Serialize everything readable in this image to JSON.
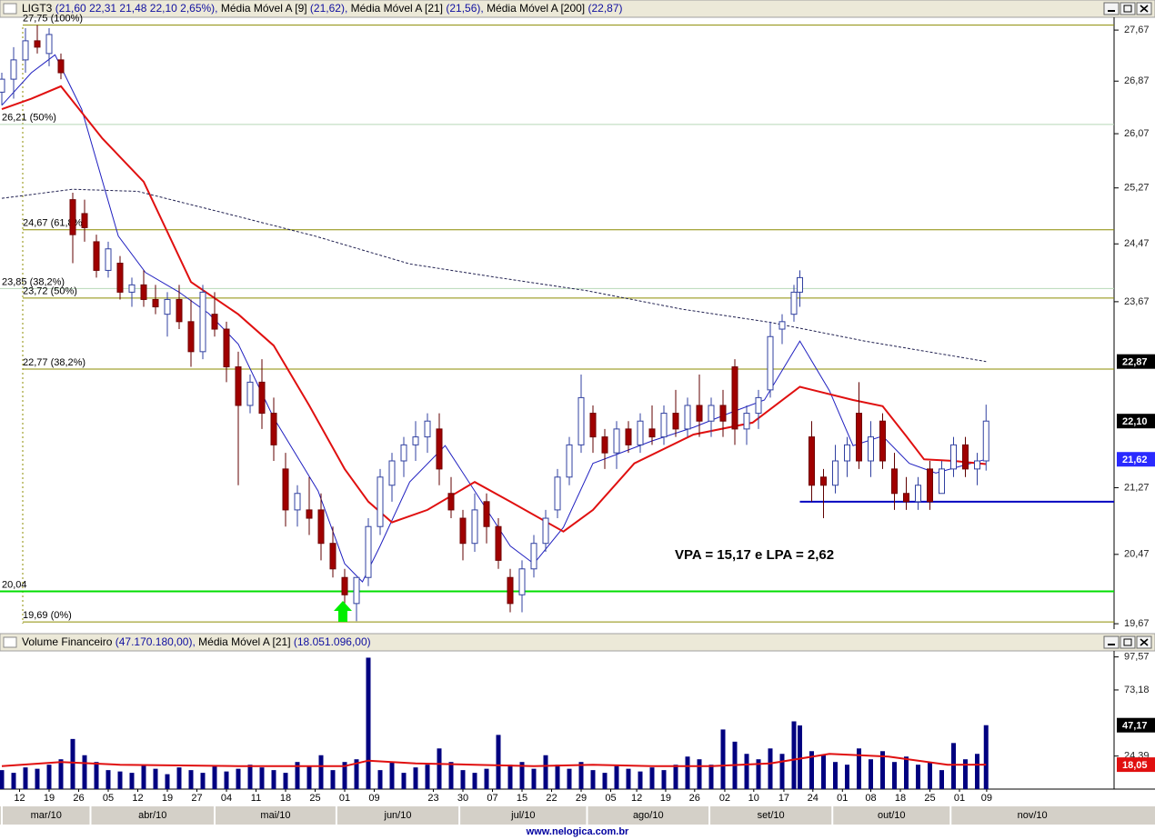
{
  "chart_data": [
    {
      "type": "candlestick",
      "title": "LIGT3",
      "quote": "(21,60  22,31  21,48  22,10  2,65%),",
      "log": true,
      "xlim": [
        0,
        188
      ],
      "ylim": [
        19.63,
        27.86
      ],
      "yticks": [
        {
          "value": 27.67,
          "label": "27,67"
        },
        {
          "value": 26.87,
          "label": "26,87"
        },
        {
          "value": 26.07,
          "label": "26,07"
        },
        {
          "value": 25.27,
          "label": "25,27"
        },
        {
          "value": 24.47,
          "label": "24,47"
        },
        {
          "value": 23.67,
          "label": "23,67"
        },
        {
          "value": 21.27,
          "label": "21,27"
        },
        {
          "value": 20.47,
          "label": "20,47"
        },
        {
          "value": 19.67,
          "label": "19,67"
        }
      ],
      "markers": [
        {
          "value": 22.87,
          "label": "22,87",
          "color": "#000000"
        },
        {
          "value": 22.1,
          "label": "22,10",
          "color": "#000000"
        },
        {
          "value": 21.62,
          "label": "21,62",
          "color": "#2a2aff"
        }
      ],
      "levels": [
        {
          "value": 27.75,
          "label": "27,75 (100%)",
          "color": "#8c8c00"
        },
        {
          "value": 26.21,
          "label": "26,21 (50%)",
          "color": "#b8d8b8"
        },
        {
          "value": 24.67,
          "label": "24,67 (61,8%)",
          "color": "#8c8c00"
        },
        {
          "value": 23.85,
          "label": "23,85 (38,2%)",
          "color": "#b8d8b8"
        },
        {
          "value": 23.72,
          "label": "23,72 (50%)",
          "color": "#8c8c00"
        },
        {
          "value": 22.77,
          "label": "22,77 (38,2%)",
          "color": "#8c8c00"
        },
        {
          "value": 20.04,
          "label": "20,04",
          "color": "#00dd00"
        },
        {
          "value": 19.69,
          "label": "19,69 (0%)",
          "color": "#8c8c00"
        }
      ],
      "support": {
        "value": 21.1,
        "from": 135,
        "color": "#0000c0"
      },
      "annotation": "VPA = 15,17 e LPA = 2,62",
      "up_color": "#ffffff",
      "down_color": "#a00000",
      "x": [
        0,
        2,
        4,
        6,
        8,
        10,
        12,
        14,
        16,
        18,
        20,
        22,
        24,
        26,
        28,
        30,
        32,
        34,
        36,
        38,
        40,
        42,
        44,
        46,
        48,
        50,
        52,
        54,
        56,
        58,
        60,
        62,
        64,
        66,
        68,
        70,
        72,
        74,
        76,
        78,
        80,
        82,
        84,
        86,
        88,
        90,
        92,
        94,
        96,
        98,
        100,
        102,
        104,
        106,
        108,
        110,
        112,
        114,
        116,
        118,
        120,
        122,
        124,
        126,
        128,
        130,
        132,
        134,
        135,
        137,
        139,
        141,
        143,
        145,
        147,
        149,
        151,
        153,
        155,
        157,
        159,
        161,
        163,
        165,
        166.5
      ],
      "open": [
        26.7,
        26.9,
        27.2,
        27.5,
        27.3,
        27.2,
        25.1,
        24.9,
        24.5,
        24.1,
        24.2,
        23.8,
        23.9,
        23.7,
        23.5,
        23.7,
        23.4,
        23.0,
        23.5,
        23.3,
        22.8,
        22.3,
        22.6,
        22.2,
        21.5,
        21.0,
        21.0,
        21.0,
        20.6,
        20.2,
        19.9,
        20.2,
        20.8,
        21.3,
        21.6,
        21.8,
        21.9,
        22.0,
        21.2,
        20.9,
        20.6,
        21.1,
        20.8,
        20.2,
        20.0,
        20.3,
        20.6,
        21.0,
        21.4,
        21.8,
        22.2,
        21.9,
        21.7,
        22.0,
        21.8,
        22.0,
        21.9,
        22.2,
        22.0,
        22.3,
        22.1,
        22.3,
        22.8,
        22.0,
        22.2,
        22.5,
        23.3,
        23.5,
        23.8,
        21.9,
        21.4,
        21.3,
        21.6,
        22.2,
        21.6,
        22.1,
        21.5,
        21.2,
        21.1,
        21.5,
        21.2,
        21.5,
        21.8,
        21.5,
        21.6
      ],
      "high": [
        27.0,
        27.4,
        27.7,
        27.75,
        27.7,
        27.3,
        25.2,
        25.1,
        24.6,
        24.5,
        24.3,
        24.0,
        24.1,
        23.9,
        23.8,
        23.9,
        23.7,
        23.9,
        23.8,
        23.4,
        23.0,
        22.7,
        22.9,
        22.4,
        21.7,
        21.3,
        21.4,
        21.2,
        20.8,
        20.3,
        20.2,
        20.9,
        21.5,
        21.7,
        21.9,
        22.1,
        22.2,
        22.2,
        21.4,
        21.0,
        21.2,
        21.2,
        20.9,
        20.3,
        20.4,
        20.7,
        21.0,
        21.5,
        21.9,
        22.7,
        22.3,
        22.0,
        22.1,
        22.1,
        22.2,
        22.3,
        22.3,
        22.5,
        22.4,
        22.7,
        22.4,
        22.5,
        22.9,
        22.3,
        22.5,
        23.4,
        23.5,
        23.9,
        24.1,
        22.1,
        21.5,
        21.8,
        21.9,
        22.6,
        22.1,
        22.2,
        21.7,
        21.4,
        21.4,
        21.6,
        21.6,
        21.9,
        21.9,
        21.7,
        22.31
      ],
      "low": [
        26.5,
        26.6,
        27.0,
        27.3,
        27.1,
        26.9,
        24.2,
        24.5,
        24.0,
        24.0,
        23.7,
        23.6,
        23.6,
        23.5,
        23.2,
        23.3,
        22.8,
        22.9,
        23.2,
        22.6,
        21.3,
        22.2,
        22.0,
        21.6,
        20.8,
        20.8,
        20.7,
        20.4,
        20.2,
        19.8,
        19.7,
        20.1,
        20.7,
        21.1,
        21.4,
        21.6,
        21.7,
        21.3,
        20.9,
        20.4,
        20.5,
        20.6,
        20.3,
        19.8,
        19.8,
        20.2,
        20.5,
        20.9,
        21.3,
        21.7,
        21.7,
        21.5,
        21.5,
        21.7,
        21.7,
        21.8,
        21.8,
        21.9,
        21.9,
        21.9,
        21.9,
        21.9,
        21.8,
        21.8,
        22.0,
        22.4,
        23.1,
        23.4,
        23.6,
        21.1,
        20.9,
        21.2,
        21.4,
        21.5,
        21.4,
        21.5,
        21.0,
        21.0,
        21.0,
        21.0,
        21.2,
        21.4,
        21.4,
        21.3,
        21.48
      ],
      "close": [
        26.9,
        27.2,
        27.5,
        27.4,
        27.6,
        27.0,
        24.6,
        24.7,
        24.1,
        24.4,
        23.8,
        23.9,
        23.7,
        23.6,
        23.7,
        23.4,
        23.0,
        23.8,
        23.3,
        22.8,
        22.3,
        22.6,
        22.2,
        21.8,
        21.0,
        21.2,
        20.9,
        20.6,
        20.3,
        20.0,
        20.2,
        20.8,
        21.4,
        21.6,
        21.8,
        21.9,
        22.1,
        21.5,
        21.0,
        20.6,
        21.0,
        20.8,
        20.4,
        19.9,
        20.3,
        20.6,
        20.9,
        21.4,
        21.8,
        22.4,
        21.9,
        21.7,
        22.0,
        21.8,
        22.1,
        21.9,
        22.2,
        22.0,
        22.3,
        22.1,
        22.3,
        22.1,
        22.0,
        22.2,
        22.4,
        23.2,
        23.4,
        23.8,
        24.0,
        21.3,
        21.3,
        21.6,
        21.8,
        21.6,
        21.9,
        21.6,
        21.2,
        21.1,
        21.3,
        21.1,
        21.5,
        21.8,
        21.5,
        21.6,
        22.1
      ],
      "series": [
        {
          "name": "Média Móvel A [9]",
          "label": "(21,62),",
          "color": "#2020c0",
          "line_width": 1,
          "dashed": false,
          "x": [
            0,
            5,
            9,
            13.5,
            19.7,
            24.3,
            30,
            35,
            40,
            46,
            53.5,
            58,
            61,
            64,
            69,
            75,
            80,
            86,
            90,
            95,
            100,
            104,
            110,
            117,
            123,
            129,
            135,
            140,
            144,
            149,
            153.5,
            158,
            163,
            166.5
          ],
          "values": [
            26.5,
            27.0,
            27.28,
            26.44,
            24.58,
            24.07,
            23.8,
            23.51,
            23.1,
            22.14,
            21.23,
            20.36,
            20.15,
            20.57,
            21.34,
            21.79,
            21.23,
            20.57,
            20.36,
            20.79,
            21.57,
            21.68,
            21.85,
            22.02,
            22.2,
            22.37,
            23.14,
            22.49,
            21.79,
            21.91,
            21.57,
            21.45,
            21.55,
            21.62
          ]
        },
        {
          "name": "Média Móvel A [21]",
          "label": "(21,56),",
          "color": "#e01010",
          "line_width": 2,
          "dashed": false,
          "x": [
            0,
            5,
            10,
            17,
            24,
            32,
            40,
            46,
            52,
            58,
            62,
            66,
            72,
            80,
            86,
            95,
            100,
            107,
            117,
            127,
            135,
            144,
            149,
            153,
            156,
            161,
            166.5
          ],
          "values": [
            26.44,
            26.6,
            26.79,
            26.0,
            25.36,
            23.94,
            23.5,
            23.08,
            22.3,
            21.5,
            21.1,
            20.85,
            21.0,
            21.34,
            21.1,
            20.74,
            21.0,
            21.57,
            21.93,
            22.08,
            22.54,
            22.37,
            22.29,
            21.91,
            21.62,
            21.6,
            21.56
          ]
        },
        {
          "name": "Média Móvel A [200]",
          "label": "(22,87)",
          "color": "#202050",
          "line_width": 1,
          "dashed": true,
          "x": [
            0,
            12,
            23,
            38,
            53,
            69,
            84,
            99,
            115,
            130,
            146,
            166.5
          ],
          "values": [
            25.12,
            25.25,
            25.22,
            24.9,
            24.58,
            24.19,
            24.0,
            23.82,
            23.57,
            23.39,
            23.14,
            22.87
          ]
        }
      ],
      "xticks": [
        {
          "value": 3,
          "label": "12"
        },
        {
          "value": 8,
          "label": "19"
        },
        {
          "value": 13,
          "label": "26"
        },
        {
          "value": 18,
          "label": "05"
        },
        {
          "value": 23,
          "label": "12"
        },
        {
          "value": 28,
          "label": "19"
        },
        {
          "value": 33,
          "label": "27"
        },
        {
          "value": 38,
          "label": "04"
        },
        {
          "value": 43,
          "label": "11"
        },
        {
          "value": 48,
          "label": "18"
        },
        {
          "value": 53,
          "label": "25"
        },
        {
          "value": 58,
          "label": "01"
        },
        {
          "value": 63,
          "label": "09"
        },
        {
          "value": 73,
          "label": "23"
        },
        {
          "value": 78,
          "label": "30"
        },
        {
          "value": 83,
          "label": "07"
        },
        {
          "value": 88,
          "label": "15"
        },
        {
          "value": 93,
          "label": "22"
        },
        {
          "value": 98,
          "label": "29"
        },
        {
          "value": 103,
          "label": "05"
        },
        {
          "value": 107.4,
          "label": "12"
        },
        {
          "value": 112.3,
          "label": "19"
        },
        {
          "value": 117.2,
          "label": "26"
        },
        {
          "value": 122.3,
          "label": "02"
        },
        {
          "value": 127.2,
          "label": "10"
        },
        {
          "value": 132.3,
          "label": "17"
        },
        {
          "value": 137.2,
          "label": "24"
        },
        {
          "value": 142.2,
          "label": "01"
        },
        {
          "value": 147,
          "label": "08"
        },
        {
          "value": 152,
          "label": "18"
        },
        {
          "value": 157,
          "label": "25"
        },
        {
          "value": 162,
          "label": "01"
        },
        {
          "value": 166.6,
          "label": "09"
        }
      ],
      "months": [
        {
          "value": 0,
          "label": "mar/10"
        },
        {
          "value": 15,
          "label": "abr/10"
        },
        {
          "value": 36,
          "label": "mai/10"
        },
        {
          "value": 56.6,
          "label": "jun/10"
        },
        {
          "value": 77.4,
          "label": "jul/10"
        },
        {
          "value": 99,
          "label": "ago/10"
        },
        {
          "value": 119.7,
          "label": "set/10"
        },
        {
          "value": 140.5,
          "label": "out/10"
        },
        {
          "value": 160.5,
          "label": "nov/10"
        }
      ],
      "footer": "www.nelogica.com.br"
    },
    {
      "type": "bar",
      "title": "Volume Financeiro",
      "quote": "(47.170.180,00),",
      "color": "#000080",
      "xlim": [
        0,
        188
      ],
      "ylim": [
        0,
        102
      ],
      "yticks": [
        {
          "value": 97.57,
          "label": "97,57"
        },
        {
          "value": 73.18,
          "label": "73,18"
        },
        {
          "value": 24.39,
          "label": "24,39"
        }
      ],
      "markers": [
        {
          "value": 47.17,
          "label": "47,17",
          "color": "#000000"
        },
        {
          "value": 18.05,
          "label": "18,05",
          "color": "#e01010"
        }
      ],
      "x": [
        0,
        2,
        4,
        6,
        8,
        10,
        12,
        14,
        16,
        18,
        20,
        22,
        24,
        26,
        28,
        30,
        32,
        34,
        36,
        38,
        40,
        42,
        44,
        46,
        48,
        50,
        52,
        54,
        56,
        58,
        60,
        62,
        64,
        66,
        68,
        70,
        72,
        74,
        76,
        78,
        80,
        82,
        84,
        86,
        88,
        90,
        92,
        94,
        96,
        98,
        100,
        102,
        104,
        106,
        108,
        110,
        112,
        114,
        116,
        118,
        120,
        122,
        124,
        126,
        128,
        130,
        132,
        134,
        135,
        137,
        139,
        141,
        143,
        145,
        147,
        149,
        151,
        153,
        155,
        157,
        159,
        161,
        163,
        165,
        166.5
      ],
      "values": [
        14,
        12,
        16,
        15,
        18,
        22,
        37,
        25,
        20,
        14,
        13,
        12,
        18,
        15,
        11,
        16,
        14,
        12,
        17,
        13,
        15,
        18,
        16,
        14,
        12,
        20,
        17,
        25,
        14,
        20,
        22,
        97,
        14,
        20,
        12,
        16,
        18,
        30,
        20,
        14,
        12,
        15,
        40,
        18,
        20,
        15,
        25,
        18,
        15,
        20,
        14,
        12,
        17,
        15,
        13,
        16,
        14,
        18,
        24,
        22,
        18,
        44,
        35,
        26,
        22,
        30,
        26,
        50,
        47,
        28,
        25,
        20,
        18,
        30,
        22,
        28,
        20,
        24,
        18,
        20,
        14,
        34,
        22,
        26,
        47.17
      ],
      "series": [
        {
          "name": "Média Móvel A [21]",
          "label": "(18.051.096,00)",
          "color": "#e01010",
          "x": [
            0,
            10,
            20,
            40,
            58,
            62,
            70,
            80,
            90,
            100,
            110,
            120,
            130,
            140,
            150,
            155,
            160,
            166.5
          ],
          "values": [
            17,
            20,
            18,
            17,
            17,
            21,
            19,
            18,
            17,
            18,
            17,
            17,
            19,
            26,
            24,
            21,
            18,
            18.05
          ]
        }
      ]
    }
  ]
}
